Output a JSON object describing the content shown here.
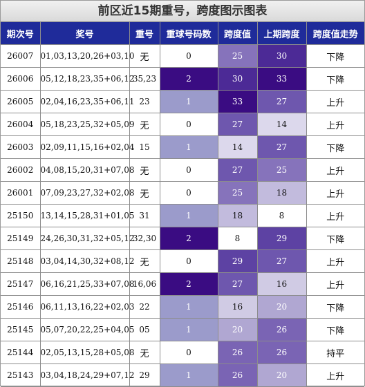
{
  "title": "前区近15期重号，跨度图示图表",
  "headers": [
    "期次号",
    "奖号",
    "重号",
    "重球号码数",
    "跨度值",
    "上期跨度",
    "跨度值走势"
  ],
  "rows": [
    {
      "period": "26007",
      "numbers": "01,03,13,20,26+03,10",
      "repeat": "无",
      "repeat_count": "0",
      "span": "25",
      "prev_span": "30",
      "trend": "下降"
    },
    {
      "period": "26006",
      "numbers": "05,12,18,23,35+06,12",
      "repeat": "35,23",
      "repeat_count": "2",
      "span": "30",
      "prev_span": "33",
      "trend": "下降"
    },
    {
      "period": "26005",
      "numbers": "02,04,16,23,35+06,11",
      "repeat": "23",
      "repeat_count": "1",
      "span": "33",
      "prev_span": "27",
      "trend": "上升"
    },
    {
      "period": "26004",
      "numbers": "05,18,23,25,32+05,09",
      "repeat": "无",
      "repeat_count": "0",
      "span": "27",
      "prev_span": "14",
      "trend": "上升"
    },
    {
      "period": "26003",
      "numbers": "02,09,11,15,16+02,04",
      "repeat": "15",
      "repeat_count": "1",
      "span": "14",
      "prev_span": "27",
      "trend": "下降"
    },
    {
      "period": "26002",
      "numbers": "04,08,15,20,31+07,08",
      "repeat": "无",
      "repeat_count": "0",
      "span": "27",
      "prev_span": "25",
      "trend": "上升"
    },
    {
      "period": "26001",
      "numbers": "07,09,23,27,32+02,08",
      "repeat": "无",
      "repeat_count": "0",
      "span": "25",
      "prev_span": "18",
      "trend": "上升"
    },
    {
      "period": "25150",
      "numbers": "13,14,15,28,31+01,05",
      "repeat": "31",
      "repeat_count": "1",
      "span": "18",
      "prev_span": "8",
      "trend": "上升"
    },
    {
      "period": "25149",
      "numbers": "24,26,30,31,32+05,12",
      "repeat": "32,30",
      "repeat_count": "2",
      "span": "8",
      "prev_span": "29",
      "trend": "下降"
    },
    {
      "period": "25148",
      "numbers": "03,04,14,30,32+08,12",
      "repeat": "无",
      "repeat_count": "0",
      "span": "29",
      "prev_span": "27",
      "trend": "上升"
    },
    {
      "period": "25147",
      "numbers": "06,16,21,25,33+07,08",
      "repeat": "16,06",
      "repeat_count": "2",
      "span": "27",
      "prev_span": "16",
      "trend": "上升"
    },
    {
      "period": "25146",
      "numbers": "06,11,13,16,22+02,03",
      "repeat": "22",
      "repeat_count": "1",
      "span": "16",
      "prev_span": "20",
      "trend": "下降"
    },
    {
      "period": "25145",
      "numbers": "05,07,20,22,25+04,05",
      "repeat": "05",
      "repeat_count": "1",
      "span": "20",
      "prev_span": "26",
      "trend": "下降"
    },
    {
      "period": "25144",
      "numbers": "02,05,13,15,28+05,08",
      "repeat": "无",
      "repeat_count": "0",
      "span": "26",
      "prev_span": "26",
      "trend": "持平"
    },
    {
      "period": "25143",
      "numbers": "03,04,18,24,29+07,12",
      "repeat": "29",
      "repeat_count": "1",
      "span": "26",
      "prev_span": "20",
      "trend": "上升"
    }
  ],
  "colors": {
    "header_bg": "#1f2b9a",
    "count_2": "#3a0c82",
    "count_1": "#9b9bcb",
    "count_0": "#ffffff",
    "span_33": "#3a0c82",
    "span_30": "#4c2a96",
    "span_29": "#5d42a3",
    "span_27": "#6e57ae",
    "span_26": "#7a64b4",
    "span_25": "#8673bb",
    "span_20": "#b0a7d2",
    "span_18": "#c2bbdd",
    "span_16": "#d0cbe4",
    "span_14": "#dcd8ec",
    "span_8": "#ffffff"
  }
}
